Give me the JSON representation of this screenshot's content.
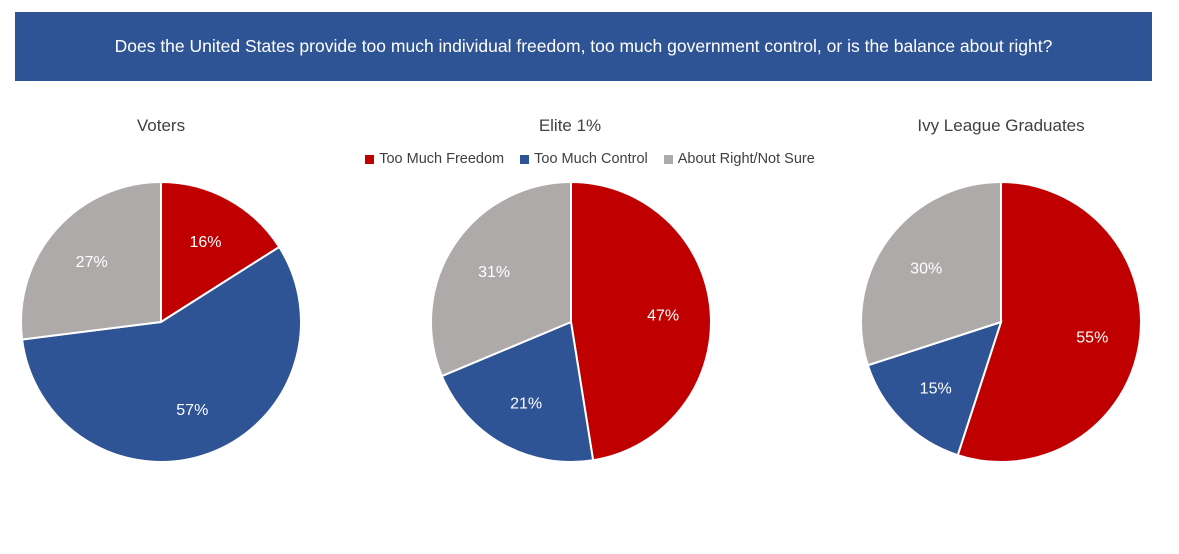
{
  "banner": {
    "question": "Does the United States provide too much individual freedom, too much government control, or is the balance about right?"
  },
  "colors": {
    "freedom": "#C00000",
    "control": "#2F5496",
    "about_right": "#AEAAAA",
    "banner": "#2F5496"
  },
  "legend": [
    {
      "label": "Too Much Freedom",
      "color": "#C00000"
    },
    {
      "label": "Too Much Control",
      "color": "#2F5496"
    },
    {
      "label": "About Right/Not Sure",
      "color": "#AEAAAA"
    }
  ],
  "chart_data": [
    {
      "type": "pie",
      "title": "Voters",
      "labels": [
        "Too Much Freedom",
        "Too Much Control",
        "About Right/Not Sure"
      ],
      "values": [
        16,
        57,
        27
      ],
      "value_labels": [
        "16%",
        "57%",
        "27%"
      ]
    },
    {
      "type": "pie",
      "title": "Elite 1%",
      "labels": [
        "Too Much Freedom",
        "Too Much Control",
        "About Right/Not Sure"
      ],
      "values": [
        47,
        21,
        31
      ],
      "value_labels": [
        "47%",
        "21%",
        "31%"
      ]
    },
    {
      "type": "pie",
      "title": "Ivy League Graduates",
      "labels": [
        "Too Much Freedom",
        "Too Much Control",
        "About Right/Not Sure"
      ],
      "values": [
        55,
        15,
        30
      ],
      "value_labels": [
        "55%",
        "15%",
        "30%"
      ]
    }
  ]
}
